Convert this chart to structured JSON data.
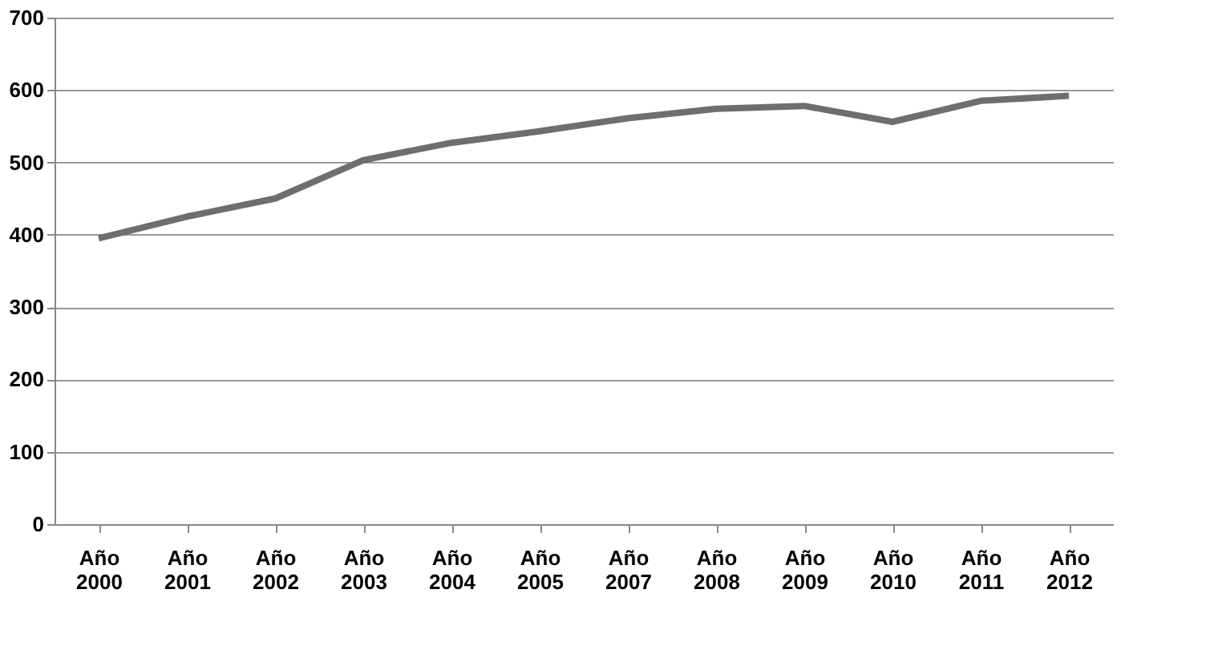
{
  "chart_data": {
    "type": "line",
    "categories": [
      "Año 2000",
      "Año 2001",
      "Año 2002",
      "Año 2003",
      "Año 2004",
      "Año 2005",
      "Año 2007",
      "Año 2008",
      "Año 2009",
      "Año 2010",
      "Año 2011",
      "Año 2012"
    ],
    "series": [
      {
        "color": "#6e6e6e",
        "values": [
          395,
          425,
          450,
          503,
          527,
          543,
          561,
          574,
          578,
          556,
          585,
          592
        ]
      }
    ],
    "ylim": [
      0,
      700
    ],
    "yticks": [
      0,
      100,
      200,
      300,
      400,
      500,
      600,
      700
    ],
    "grid": "y",
    "legend": false,
    "marker": "none",
    "line_style": "solid"
  }
}
